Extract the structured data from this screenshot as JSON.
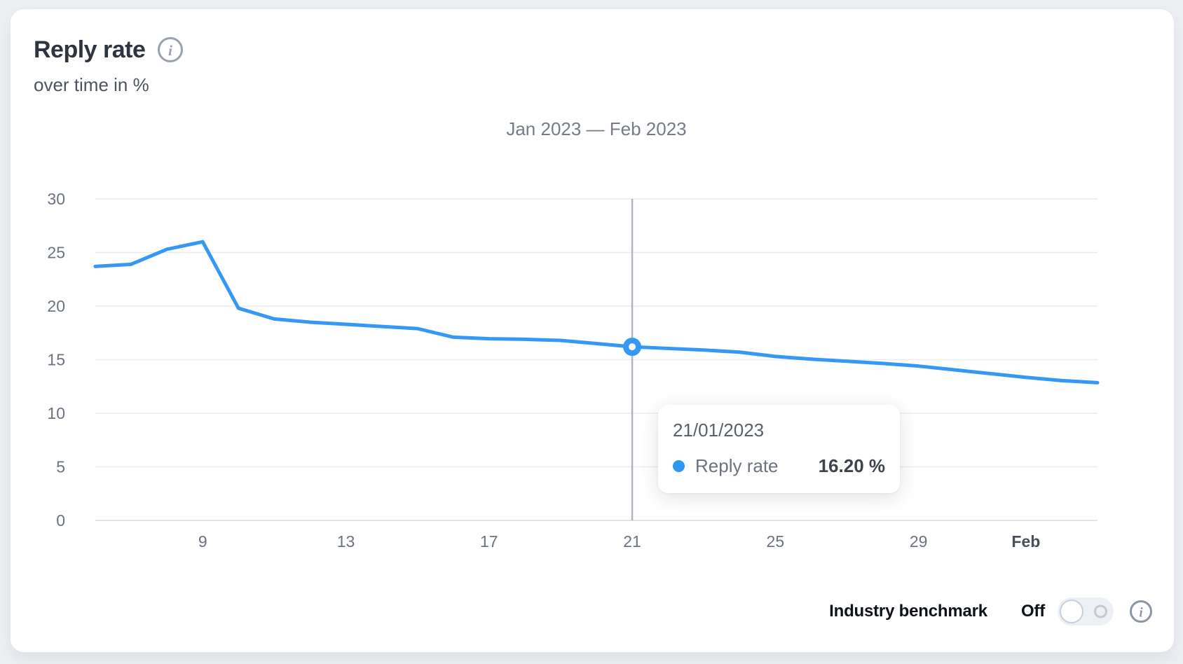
{
  "header": {
    "title": "Reply rate",
    "subtitle": "over time in %",
    "title_info_icon": "info-icon"
  },
  "chart": {
    "range_title": "Jan 2023 — Feb 2023"
  },
  "tooltip": {
    "date": "21/01/2023",
    "series_label": "Reply rate",
    "value": "16.20 %"
  },
  "benchmark": {
    "label": "Industry benchmark",
    "state": "Off",
    "info_icon": "info-icon"
  },
  "colors": {
    "accent_blue": "#3598f4",
    "tooltip_dot_blue": "#2e96f3",
    "gridline": "#e9ebee",
    "zero_line": "#e2e4e8",
    "crosshair": "#aeb6c0",
    "axis_text": "#6b7280",
    "page_background": "#edeff3",
    "card_background": "#ffffff"
  },
  "chart_data": {
    "type": "line",
    "title": "Jan 2023 — Feb 2023",
    "xlabel": "",
    "ylabel": "Reply rate over time in %",
    "ylim": [
      0,
      30
    ],
    "grid": "horizontal",
    "legend_position": "none",
    "y_ticks": [
      30,
      25,
      20,
      15,
      10,
      5,
      0
    ],
    "x_tick_labels": [
      {
        "label": "9",
        "index": 3,
        "bold": false
      },
      {
        "label": "13",
        "index": 7,
        "bold": false
      },
      {
        "label": "17",
        "index": 11,
        "bold": false
      },
      {
        "label": "21",
        "index": 15,
        "bold": false
      },
      {
        "label": "25",
        "index": 19,
        "bold": false
      },
      {
        "label": "29",
        "index": 23,
        "bold": false
      },
      {
        "label": "Feb",
        "index": 26,
        "bold": true
      }
    ],
    "series": [
      {
        "name": "Reply rate",
        "color": "#3598f4",
        "x": [
          "Jan 6",
          "Jan 7",
          "Jan 8",
          "Jan 9",
          "Jan 10",
          "Jan 11",
          "Jan 12",
          "Jan 13",
          "Jan 14",
          "Jan 15",
          "Jan 16",
          "Jan 17",
          "Jan 18",
          "Jan 19",
          "Jan 20",
          "Jan 21",
          "Jan 22",
          "Jan 23",
          "Jan 24",
          "Jan 25",
          "Jan 26",
          "Jan 27",
          "Jan 28",
          "Jan 29",
          "Jan 30",
          "Jan 31",
          "Feb 1",
          "Feb 2",
          "Feb 3"
        ],
        "values": [
          23.7,
          23.9,
          25.3,
          26.0,
          19.8,
          18.8,
          18.5,
          18.3,
          18.1,
          17.9,
          17.1,
          16.95,
          16.9,
          16.8,
          16.5,
          16.2,
          16.05,
          15.9,
          15.7,
          15.3,
          15.05,
          14.85,
          14.65,
          14.4,
          14.05,
          13.7,
          13.35,
          13.05,
          12.85
        ]
      }
    ],
    "highlight": {
      "x": "Jan 21",
      "index": 15,
      "value": 16.2,
      "tooltip_value_label": "16.20 %"
    }
  }
}
